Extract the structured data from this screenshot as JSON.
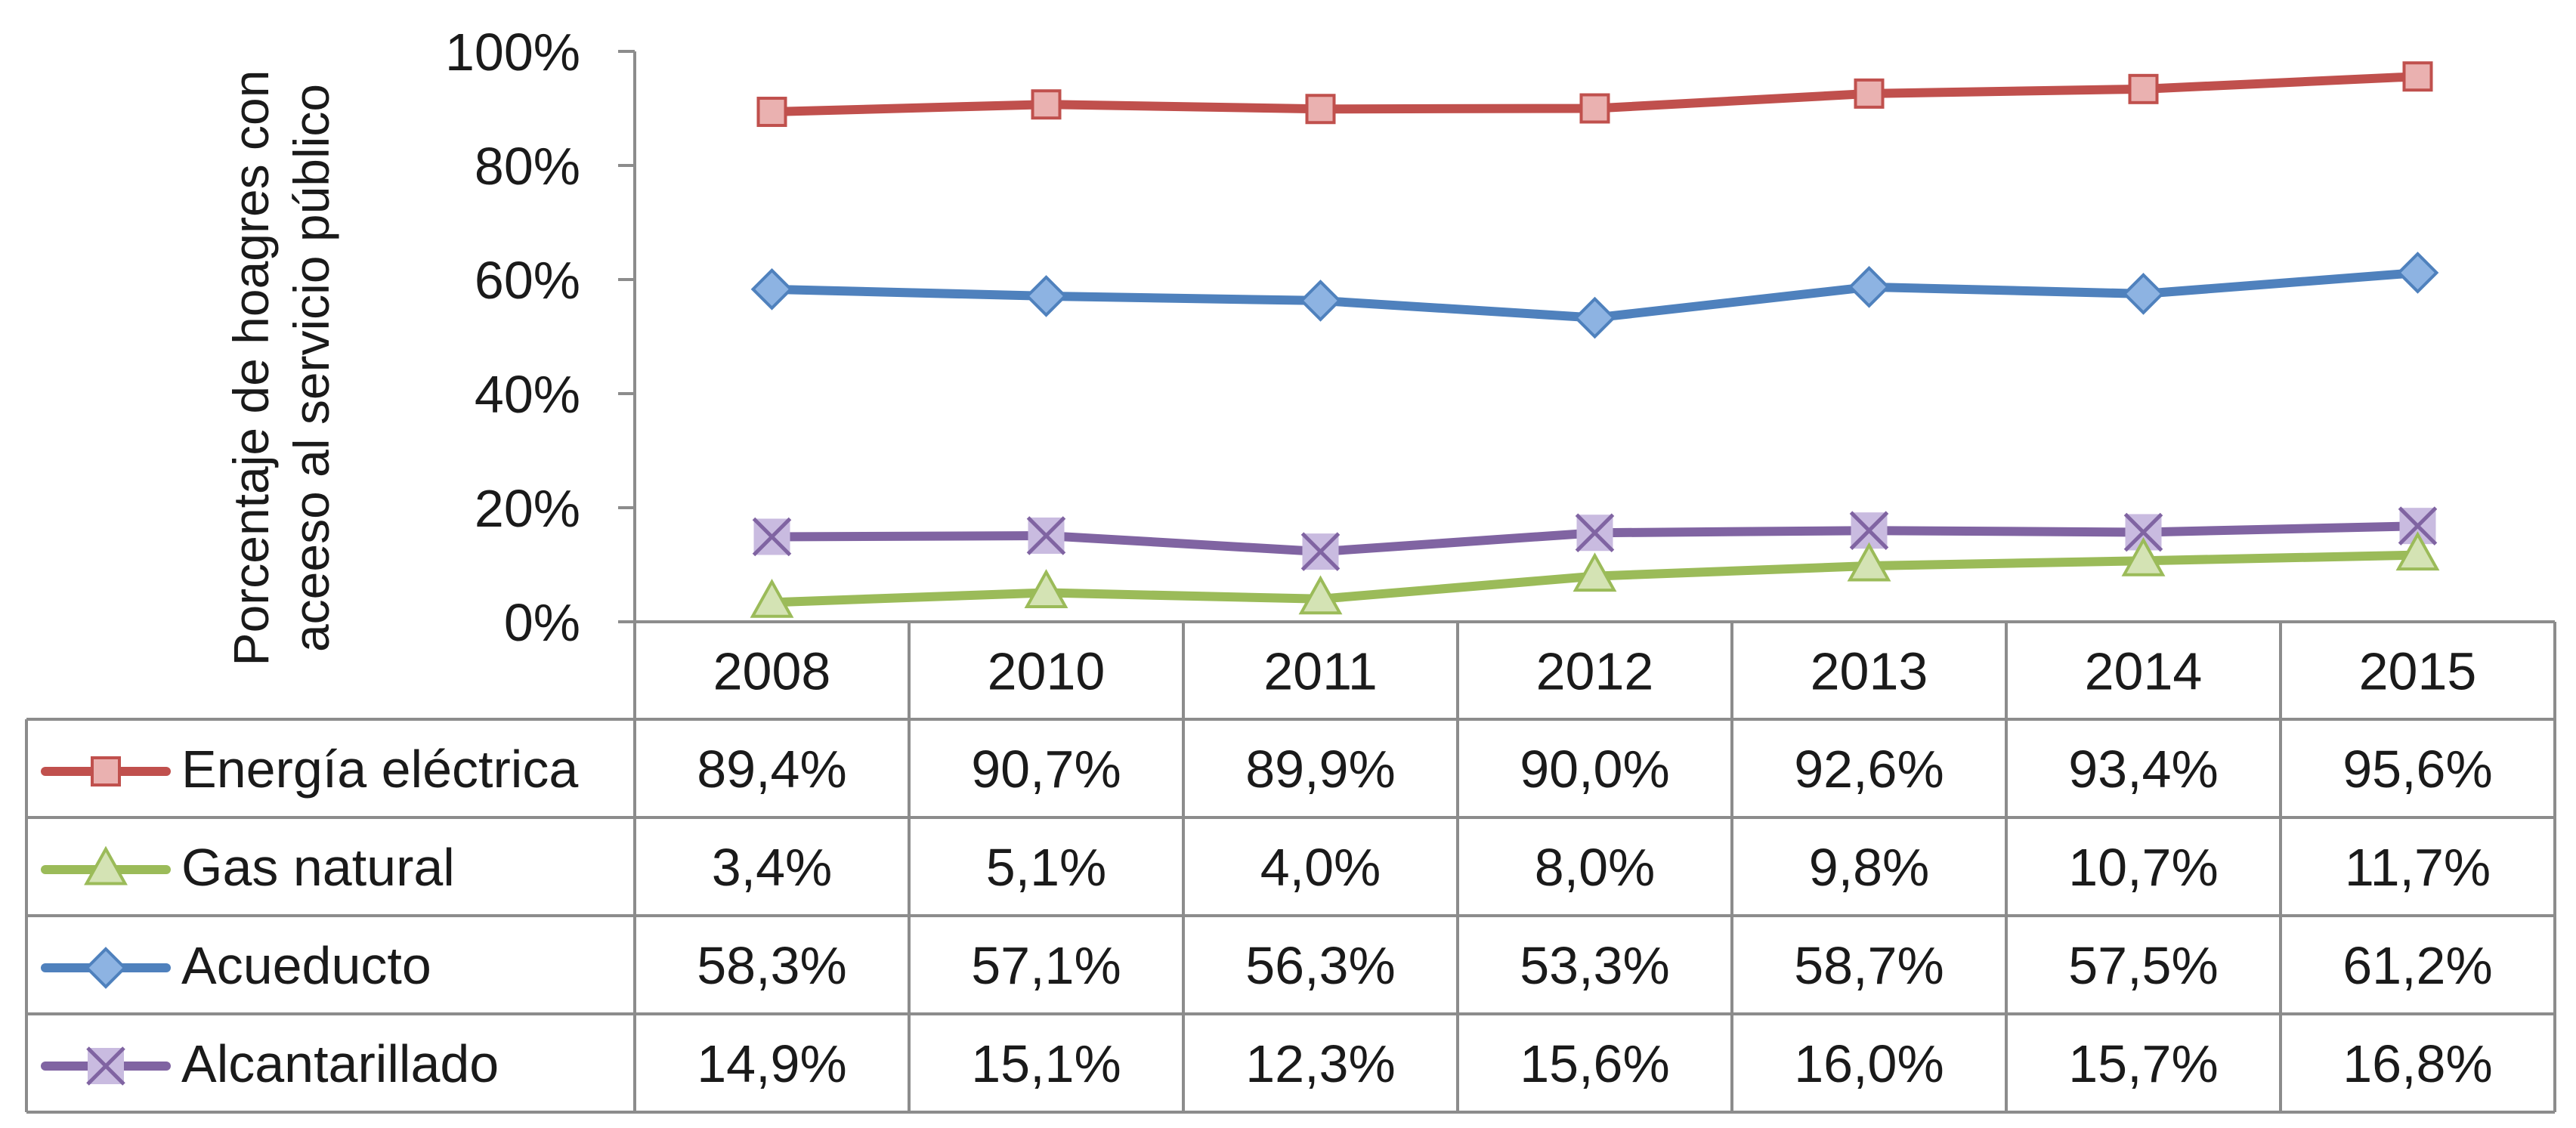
{
  "chart_data": {
    "type": "line",
    "ylabel_lines": [
      "Porcentaje de hoagres con",
      "aceeso al servicio público"
    ],
    "y_ticks": [
      "0%",
      "20%",
      "40%",
      "60%",
      "80%",
      "100%"
    ],
    "ylim": [
      0,
      100
    ],
    "categories": [
      "2008",
      "2010",
      "2011",
      "2012",
      "2013",
      "2014",
      "2015"
    ],
    "grid": false,
    "legend": "data-table",
    "series": [
      {
        "name": "Energía eléctrica",
        "values": [
          89.4,
          90.7,
          89.9,
          90.0,
          92.6,
          93.4,
          95.6
        ],
        "labels": [
          "89,4%",
          "90,7%",
          "89,9%",
          "90,0%",
          "92,6%",
          "93,4%",
          "95,6%"
        ],
        "color": "#c0504d",
        "fill": "#eab1b0",
        "marker": "square"
      },
      {
        "name": "Gas natural",
        "values": [
          3.4,
          5.1,
          4.0,
          8.0,
          9.8,
          10.7,
          11.7
        ],
        "labels": [
          "3,4%",
          "5,1%",
          "4,0%",
          "8,0%",
          "9,8%",
          "10,7%",
          "11,7%"
        ],
        "color": "#9bbb59",
        "fill": "#d4e3b4",
        "marker": "triangle"
      },
      {
        "name": "Acueducto",
        "values": [
          58.3,
          57.1,
          56.3,
          53.3,
          58.7,
          57.5,
          61.2
        ],
        "labels": [
          "58,3%",
          "57,1%",
          "56,3%",
          "53,3%",
          "58,7%",
          "57,5%",
          "61,2%"
        ],
        "color": "#4f81bd",
        "fill": "#8db3e2",
        "marker": "diamond"
      },
      {
        "name": "Alcantarillado",
        "values": [
          14.9,
          15.1,
          12.3,
          15.6,
          16.0,
          15.7,
          16.8
        ],
        "labels": [
          "14,9%",
          "15,1%",
          "12,3%",
          "15,6%",
          "16,0%",
          "15,7%",
          "16,8%"
        ],
        "color": "#8064a2",
        "fill": "#c9bbe0",
        "marker": "x-square"
      }
    ]
  }
}
